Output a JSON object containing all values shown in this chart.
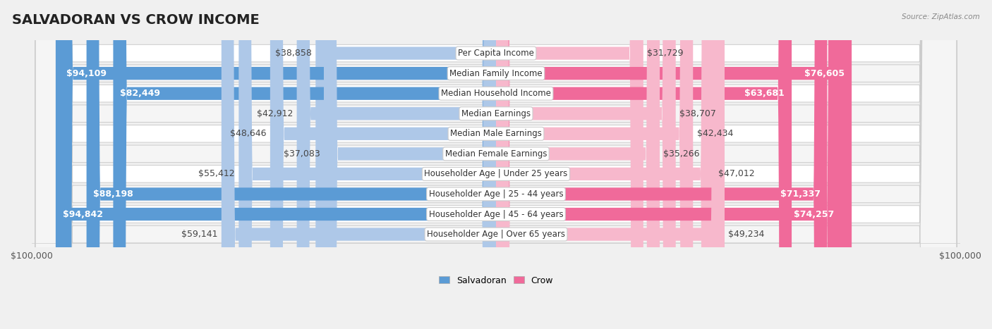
{
  "title": "SALVADORAN VS CROW INCOME",
  "source": "Source: ZipAtlas.com",
  "categories": [
    "Per Capita Income",
    "Median Family Income",
    "Median Household Income",
    "Median Earnings",
    "Median Male Earnings",
    "Median Female Earnings",
    "Householder Age | Under 25 years",
    "Householder Age | 25 - 44 years",
    "Householder Age | 45 - 64 years",
    "Householder Age | Over 65 years"
  ],
  "salvadoran_values": [
    38858,
    94109,
    82449,
    42912,
    48646,
    37083,
    55412,
    88198,
    94842,
    59141
  ],
  "crow_values": [
    31729,
    76605,
    63681,
    38707,
    42434,
    35266,
    47012,
    71337,
    74257,
    49234
  ],
  "salvadoran_labels": [
    "$38,858",
    "$94,109",
    "$82,449",
    "$42,912",
    "$48,646",
    "$37,083",
    "$55,412",
    "$88,198",
    "$94,842",
    "$59,141"
  ],
  "crow_labels": [
    "$31,729",
    "$76,605",
    "$63,681",
    "$38,707",
    "$42,434",
    "$35,266",
    "$47,012",
    "$71,337",
    "$74,257",
    "$49,234"
  ],
  "max_value": 100000,
  "salvadoran_color_light": "#aec8e8",
  "salvadoran_color_dark": "#5b9bd5",
  "crow_color_light": "#f7b8cc",
  "crow_color_dark": "#f06a9a",
  "background_color": "#f0f0f0",
  "row_bg": "#ffffff",
  "row_alt_bg": "#f5f5f5",
  "title_fontsize": 14,
  "label_fontsize": 9,
  "category_fontsize": 8.5,
  "axis_fontsize": 9,
  "inside_threshold": 60000
}
